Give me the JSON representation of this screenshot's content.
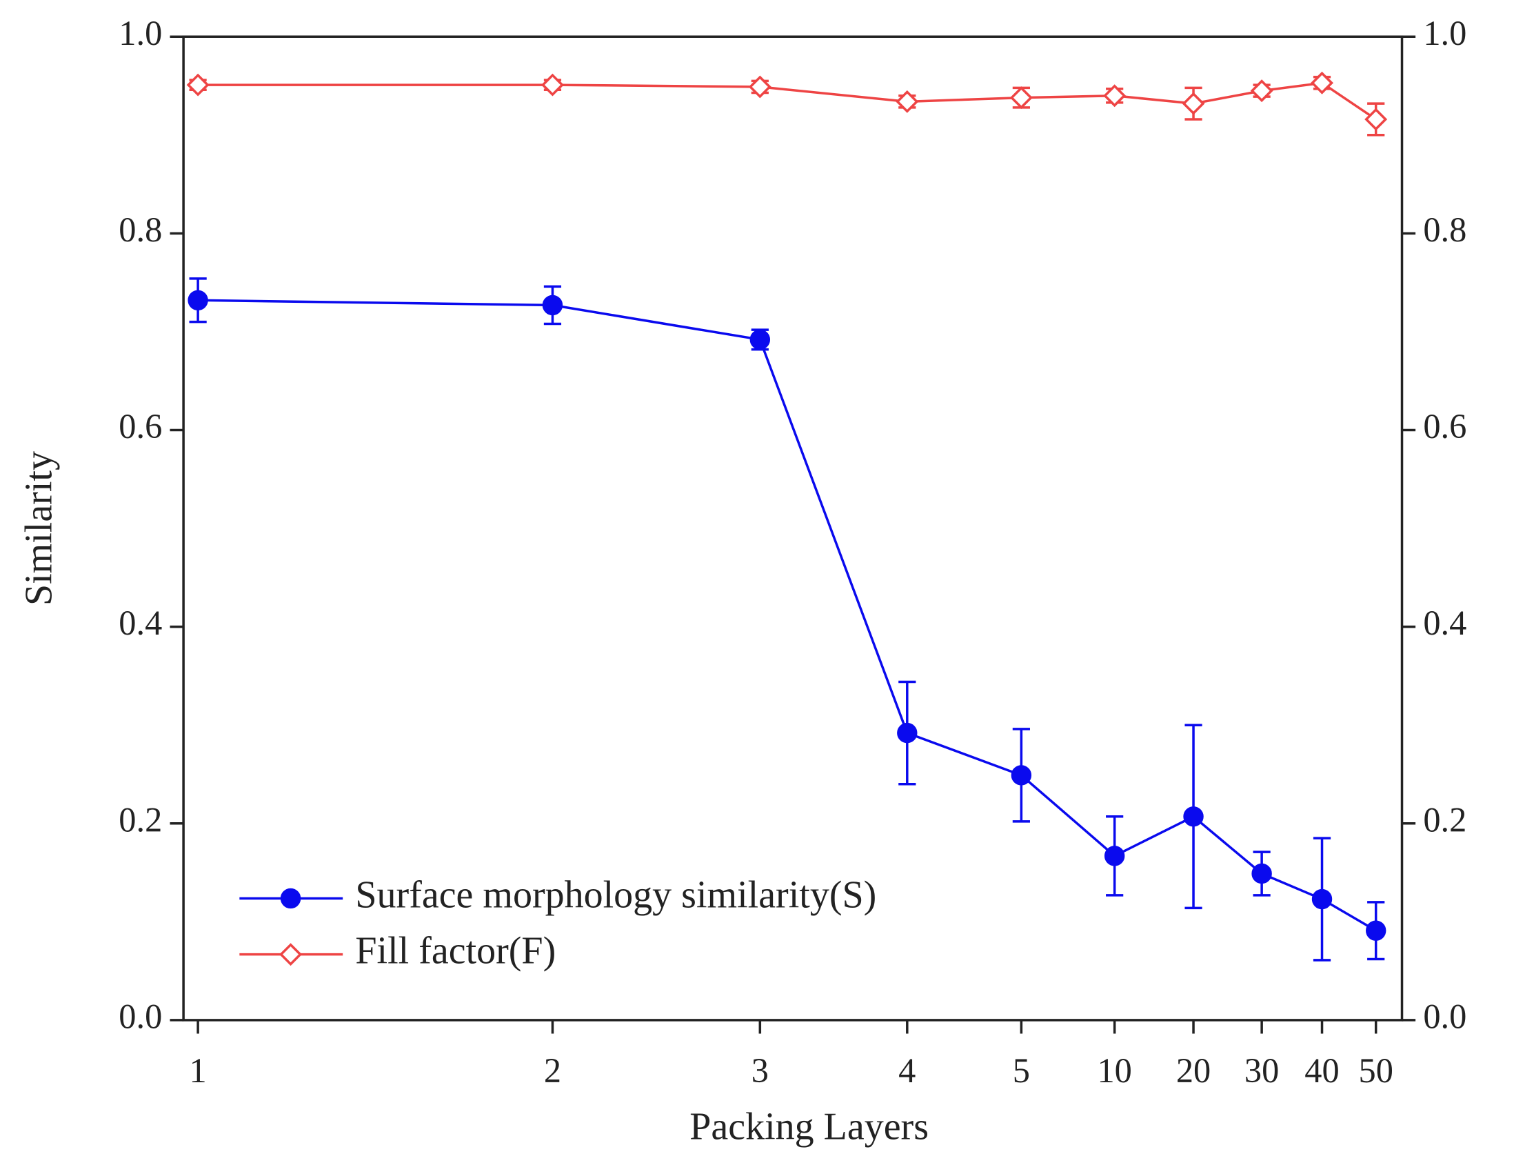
{
  "chart_data": {
    "type": "line",
    "xlabel": "Packing Layers",
    "ylabel": "Similarity",
    "categories": [
      "1",
      "2",
      "3",
      "4",
      "5",
      "10",
      "20",
      "30",
      "40",
      "50"
    ],
    "ylim": [
      0,
      1
    ],
    "yticks": [
      {
        "value": 0,
        "label": "0.0"
      },
      0.2,
      0.4,
      0.6,
      0.8,
      {
        "value": 1,
        "label": "1.0"
      }
    ],
    "y2lim": [
      0,
      1
    ],
    "y2ticks": [
      {
        "value": 0,
        "label": "0.0"
      },
      0.2,
      0.4,
      0.6,
      0.8,
      {
        "value": 1,
        "label": "1.0"
      }
    ],
    "legend": "lower left",
    "series": [
      {
        "name": "Surface morphology similarity(S)",
        "color": "#0a0aee",
        "marker": "circle",
        "values": [
          0.732,
          0.727,
          0.692,
          0.292,
          0.249,
          0.167,
          0.207,
          0.149,
          0.123,
          0.091
        ],
        "error": [
          0.022,
          0.019,
          0.01,
          0.052,
          0.047,
          0.04,
          0.093,
          0.022,
          0.062,
          0.029
        ]
      },
      {
        "name": "Fill factor(F)",
        "color": "#ee4444",
        "marker": "diamond",
        "values": [
          0.951,
          0.951,
          0.949,
          0.934,
          0.938,
          0.94,
          0.932,
          0.945,
          0.953,
          0.916
        ],
        "error": [
          0.005,
          0.005,
          0.006,
          0.006,
          0.01,
          0.007,
          0.016,
          0.006,
          0.006,
          0.016
        ]
      }
    ]
  }
}
